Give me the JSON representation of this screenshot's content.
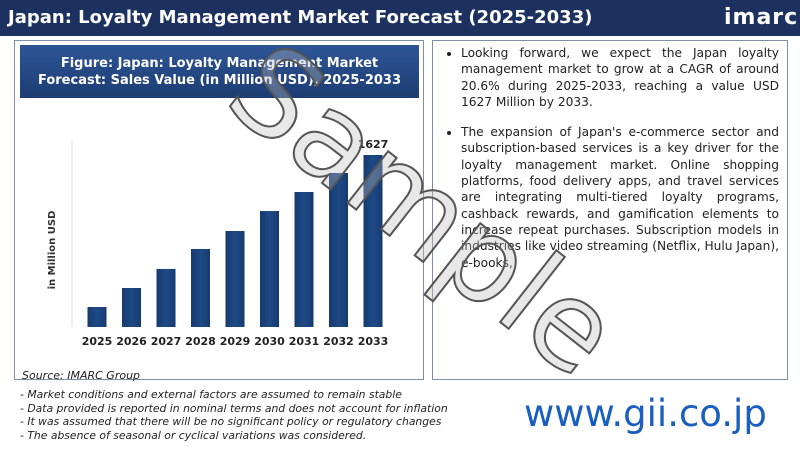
{
  "header": {
    "title": "Japan: Loyalty Management Market Forecast (2025-2033)",
    "logo": "imarc"
  },
  "chart_data": {
    "type": "bar",
    "title": "Figure: Japan: Loyalty Management Market Forecast: Sales Value (in Million USD), 2025-2033",
    "y_label": "in Million USD",
    "categories": [
      "2025",
      "2026",
      "2027",
      "2028",
      "2029",
      "2030",
      "2031",
      "2032",
      "2033"
    ],
    "values": [
      189,
      369,
      549,
      738,
      908,
      1097,
      1277,
      1457,
      1627
    ],
    "color": "#1f4a86",
    "data_labels": "last",
    "source": "Source: IMARC Group"
  },
  "bullets": [
    "Looking forward, we expect the Japan loyalty management market to grow at a CAGR of around 20.6% during 2025-2033, reaching a value USD 1627 Million by 2033.",
    "The expansion of Japan's e-commerce sector and subscription-based services is a key driver for the loyalty management market. Online shopping platforms, food delivery apps, and travel services are integrating multi-tiered loyalty programs, cashback rewards, and gamification elements to increase repeat purchases. Subscription models in industries like video streaming (Netflix, Hulu Japan), e-books,"
  ],
  "notes": [
    "- Market conditions and external factors are assumed to remain stable",
    "- Data provided is reported in nominal terms and does not account for inflation",
    "- It was assumed that there will be no significant policy or regulatory changes",
    "- The absence of seasonal or cyclical variations was considered."
  ],
  "website": "www.gii.co.jp",
  "watermark": "Sample"
}
